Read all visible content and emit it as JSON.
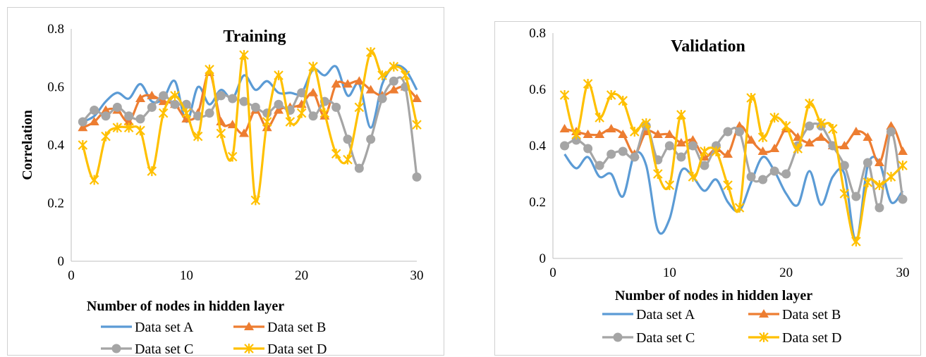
{
  "chart_data": [
    {
      "type": "line",
      "title": "Training",
      "xlabel": "Number of nodes in hidden layer",
      "ylabel": "Correlation",
      "xlim": [
        0,
        30
      ],
      "ylim": [
        0,
        0.8
      ],
      "xticks": [
        0,
        10,
        20,
        30
      ],
      "yticks": [
        0,
        0.2,
        0.4,
        0.6,
        0.8
      ],
      "x_tick_labels": [
        "0",
        "10",
        "20",
        "30"
      ],
      "y_tick_labels": [
        "0",
        "0.2",
        "0.4",
        "0.6",
        "0.8"
      ],
      "grid": false,
      "legend": "bottom",
      "x": [
        1,
        2,
        3,
        4,
        5,
        6,
        7,
        8,
        9,
        10,
        11,
        12,
        13,
        14,
        15,
        16,
        17,
        18,
        19,
        20,
        21,
        22,
        23,
        24,
        25,
        26,
        27,
        28,
        29,
        30
      ],
      "series": [
        {
          "name": "Data set A",
          "color": "#5B9BD5",
          "marker": "none",
          "values": [
            0.48,
            0.5,
            0.55,
            0.58,
            0.56,
            0.61,
            0.55,
            0.56,
            0.62,
            0.48,
            0.6,
            0.54,
            0.59,
            0.56,
            0.64,
            0.59,
            0.62,
            0.58,
            0.58,
            0.58,
            0.66,
            0.64,
            0.67,
            0.57,
            0.61,
            0.46,
            0.61,
            0.67,
            0.66,
            0.59
          ]
        },
        {
          "name": "Data set B",
          "color": "#ED7D31",
          "marker": "triangle",
          "values": [
            0.46,
            0.48,
            0.52,
            0.52,
            0.48,
            0.56,
            0.57,
            0.55,
            0.54,
            0.49,
            0.51,
            0.65,
            0.48,
            0.47,
            0.44,
            0.52,
            0.46,
            0.52,
            0.53,
            0.54,
            0.58,
            0.5,
            0.61,
            0.61,
            0.62,
            0.59,
            0.57,
            0.59,
            0.6,
            0.56
          ]
        },
        {
          "name": "Data set C",
          "color": "#A5A5A5",
          "marker": "circle",
          "values": [
            0.48,
            0.52,
            0.5,
            0.53,
            0.5,
            0.49,
            0.53,
            0.57,
            0.54,
            0.54,
            0.5,
            0.51,
            0.57,
            0.56,
            0.55,
            0.53,
            0.51,
            0.54,
            0.52,
            0.58,
            0.5,
            0.55,
            0.53,
            0.42,
            0.32,
            0.42,
            0.56,
            0.62,
            0.6,
            0.29
          ]
        },
        {
          "name": "Data set D",
          "color": "#FFC000",
          "marker": "star",
          "values": [
            0.4,
            0.28,
            0.43,
            0.46,
            0.46,
            0.45,
            0.31,
            0.51,
            0.57,
            0.51,
            0.43,
            0.66,
            0.44,
            0.36,
            0.71,
            0.21,
            0.48,
            0.64,
            0.48,
            0.51,
            0.67,
            0.51,
            0.37,
            0.35,
            0.53,
            0.72,
            0.64,
            0.67,
            0.64,
            0.47
          ]
        }
      ]
    },
    {
      "type": "line",
      "title": "Validation",
      "xlabel": "Number of nodes in hidden layer",
      "ylabel": "",
      "xlim": [
        0,
        30
      ],
      "ylim": [
        0,
        0.8
      ],
      "xticks": [
        0,
        10,
        20,
        30
      ],
      "yticks": [
        0,
        0.2,
        0.4,
        0.6,
        0.8
      ],
      "x_tick_labels": [
        "0",
        "10",
        "20",
        "30"
      ],
      "y_tick_labels": [
        "0",
        "0.2",
        "0.4",
        "0.6",
        "0.8"
      ],
      "grid": false,
      "legend": "bottom",
      "x": [
        1,
        2,
        3,
        4,
        5,
        6,
        7,
        8,
        9,
        10,
        11,
        12,
        13,
        14,
        15,
        16,
        17,
        18,
        19,
        20,
        21,
        22,
        23,
        24,
        25,
        26,
        27,
        28,
        29,
        30
      ],
      "series": [
        {
          "name": "Data set A",
          "color": "#5B9BD5",
          "marker": "none",
          "values": [
            0.37,
            0.32,
            0.36,
            0.29,
            0.3,
            0.22,
            0.37,
            0.33,
            0.1,
            0.14,
            0.31,
            0.29,
            0.24,
            0.28,
            0.2,
            0.17,
            0.27,
            0.36,
            0.31,
            0.23,
            0.19,
            0.31,
            0.19,
            0.29,
            0.3,
            0.06,
            0.33,
            0.34,
            0.2,
            0.24
          ]
        },
        {
          "name": "Data set B",
          "color": "#ED7D31",
          "marker": "triangle",
          "values": [
            0.46,
            0.45,
            0.44,
            0.44,
            0.46,
            0.44,
            0.37,
            0.45,
            0.44,
            0.44,
            0.41,
            0.42,
            0.36,
            0.39,
            0.37,
            0.47,
            0.42,
            0.38,
            0.39,
            0.46,
            0.43,
            0.41,
            0.43,
            0.4,
            0.4,
            0.45,
            0.43,
            0.34,
            0.47,
            0.38
          ]
        },
        {
          "name": "Data set C",
          "color": "#A5A5A5",
          "marker": "circle",
          "values": [
            0.4,
            0.42,
            0.39,
            0.33,
            0.37,
            0.38,
            0.36,
            0.47,
            0.35,
            0.4,
            0.36,
            0.4,
            0.33,
            0.4,
            0.45,
            0.45,
            0.29,
            0.28,
            0.31,
            0.3,
            0.4,
            0.47,
            0.47,
            0.4,
            0.33,
            0.22,
            0.34,
            0.18,
            0.45,
            0.21
          ]
        },
        {
          "name": "Data set D",
          "color": "#FFC000",
          "marker": "star",
          "values": [
            0.58,
            0.44,
            0.62,
            0.5,
            0.58,
            0.56,
            0.45,
            0.48,
            0.3,
            0.26,
            0.51,
            0.29,
            0.38,
            0.38,
            0.26,
            0.18,
            0.57,
            0.43,
            0.5,
            0.47,
            0.39,
            0.55,
            0.48,
            0.46,
            0.23,
            0.06,
            0.27,
            0.26,
            0.29,
            0.33
          ]
        }
      ]
    }
  ]
}
